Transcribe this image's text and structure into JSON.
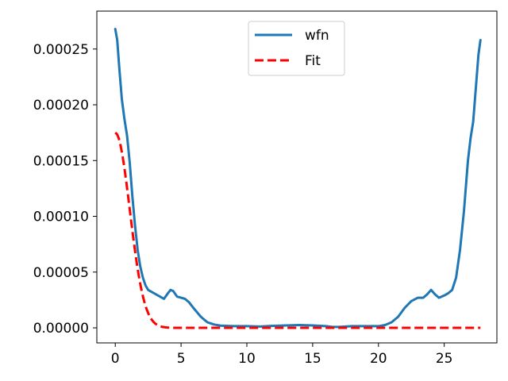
{
  "chart_data": {
    "type": "line",
    "title": "",
    "xlabel": "",
    "ylabel": "",
    "xlim": [
      -1.4,
      29.0
    ],
    "ylim": [
      -1.35e-05,
      0.000284
    ],
    "xticks": [
      0,
      5,
      10,
      15,
      20,
      25
    ],
    "xtick_labels": [
      "0",
      "5",
      "10",
      "15",
      "20",
      "25"
    ],
    "yticks": [
      0.0,
      5e-05,
      0.0001,
      0.00015,
      0.0002,
      0.00025
    ],
    "ytick_labels": [
      "0.00000",
      "0.00005",
      "0.00010",
      "0.00015",
      "0.00020",
      "0.00025"
    ],
    "grid": false,
    "legend_position": "upper center",
    "series": [
      {
        "name": "wfn",
        "color": "#1f77b4",
        "style": "solid",
        "x": [
          0.0,
          0.15,
          0.3,
          0.5,
          0.7,
          0.9,
          1.1,
          1.3,
          1.5,
          1.7,
          1.9,
          2.1,
          2.3,
          2.5,
          2.8,
          3.1,
          3.4,
          3.7,
          4.0,
          4.2,
          4.4,
          4.7,
          5.0,
          5.3,
          5.6,
          6.0,
          6.5,
          7.0,
          7.5,
          8.0,
          9.0,
          10.0,
          11.0,
          12.0,
          13.0,
          14.0,
          15.0,
          16.0,
          16.5,
          17.0,
          17.5,
          18.0,
          19.0,
          20.0,
          20.5,
          21.0,
          21.5,
          22.0,
          22.5,
          23.0,
          23.4,
          23.7,
          24.0,
          24.3,
          24.6,
          25.0,
          25.3,
          25.6,
          25.9,
          26.2,
          26.5,
          26.8,
          27.0,
          27.2,
          27.4,
          27.6,
          27.75
        ],
        "y": [
          0.000268,
          0.000258,
          0.000234,
          0.000205,
          0.000187,
          0.000172,
          0.000148,
          0.000118,
          9.2e-05,
          7e-05,
          5.5e-05,
          4.5e-05,
          3.8e-05,
          3.4e-05,
          3.2e-05,
          3e-05,
          2.8e-05,
          2.6e-05,
          3.1e-05,
          3.4e-05,
          3.3e-05,
          2.8e-05,
          2.7e-05,
          2.6e-05,
          2.3e-05,
          1.7e-05,
          1e-05,
          5e-06,
          3e-06,
          2e-06,
          1.5e-06,
          1.5e-06,
          1.2e-06,
          1.8e-06,
          2.2e-06,
          2.5e-06,
          2.2e-06,
          1.5e-06,
          8e-07,
          8e-07,
          1.2e-06,
          1.5e-06,
          1.5e-06,
          1.5e-06,
          2.5e-06,
          5e-06,
          1e-05,
          1.8e-05,
          2.4e-05,
          2.7e-05,
          2.7e-05,
          3e-05,
          3.4e-05,
          3e-05,
          2.7e-05,
          2.9e-05,
          3.1e-05,
          3.4e-05,
          4.5e-05,
          7e-05,
          0.000105,
          0.00015,
          0.00017,
          0.000185,
          0.000215,
          0.000245,
          0.000258
        ]
      },
      {
        "name": "Fit",
        "color": "#ff0000",
        "style": "dashed",
        "function": "gaussian",
        "amplitude": 0.000175,
        "sigma": 1.1,
        "x_range": [
          0.0,
          27.75
        ]
      }
    ]
  }
}
